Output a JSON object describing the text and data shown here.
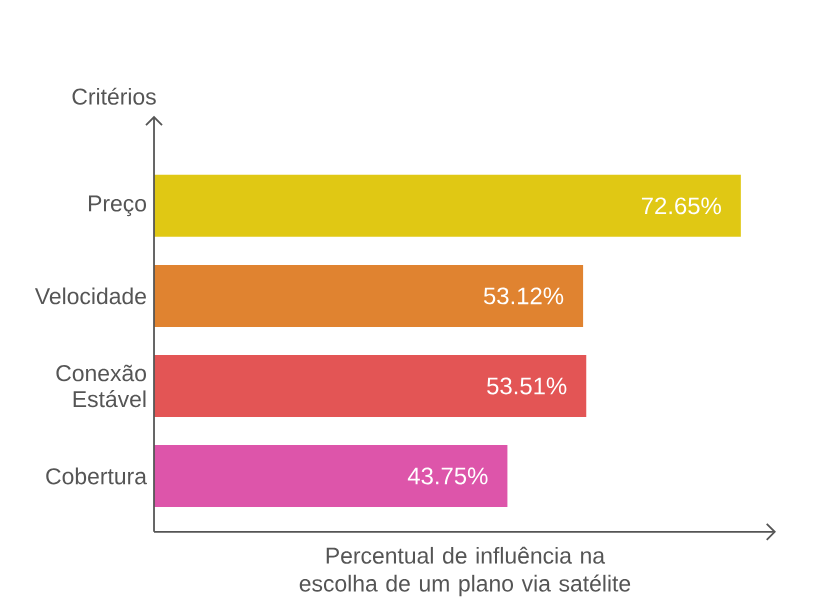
{
  "chart_data": {
    "type": "bar",
    "orientation": "horizontal",
    "xlabel": "Percentual de influência na escolha de um plano via satélite",
    "ylabel": "Critérios",
    "categories": [
      "Preço",
      "Velocidade",
      "Conexão Estável",
      "Cobertura"
    ],
    "values": [
      72.65,
      53.12,
      53.51,
      43.75
    ],
    "value_labels": [
      "72.65%",
      "53.12%",
      "53.51%",
      "43.75%"
    ],
    "colors": [
      "#e0c814",
      "#e08330",
      "#e35555",
      "#dd55aa"
    ],
    "xlim": [
      0,
      77
    ],
    "tick_labels": "y"
  }
}
